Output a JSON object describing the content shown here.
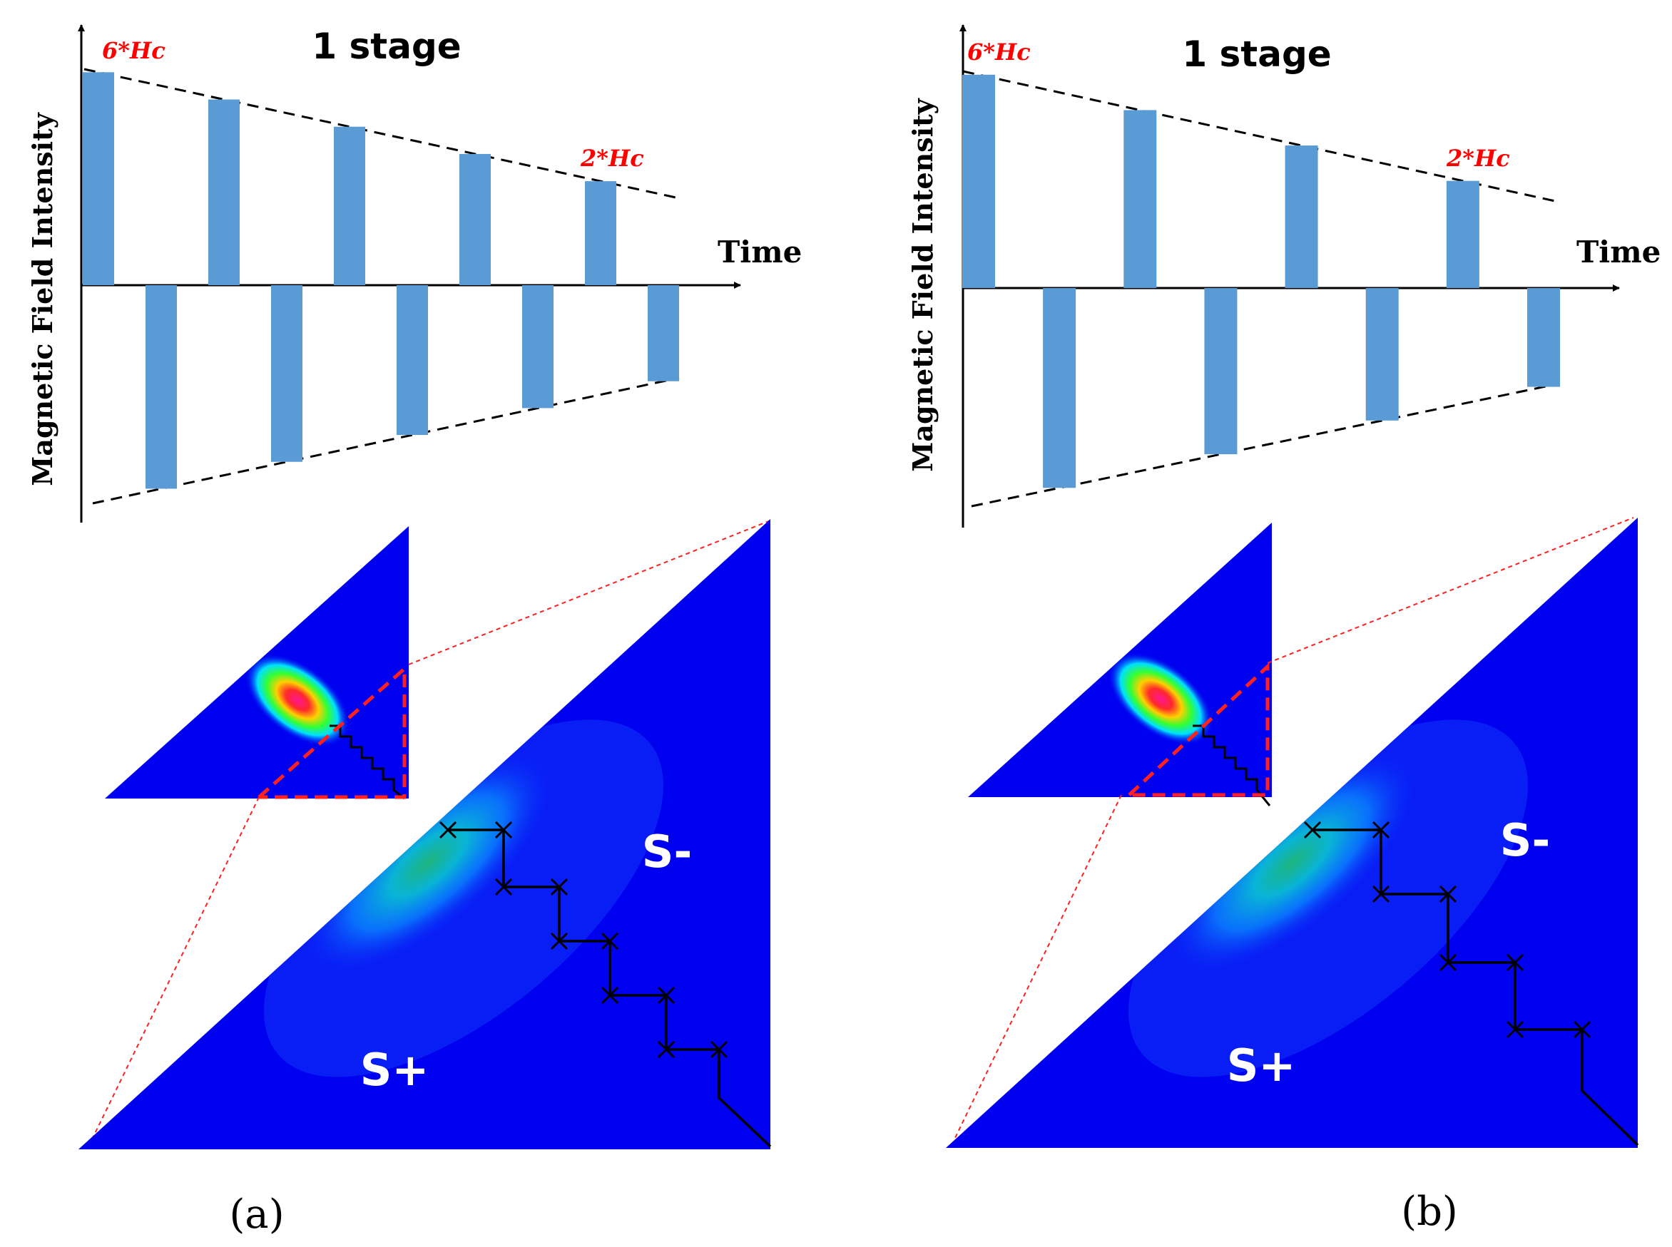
{
  "colors": {
    "bar": "#5B9BD5",
    "axis": "#000000",
    "red_label": "#FF0000",
    "red_dash": "#FF2020",
    "map_bg": "#0000F0",
    "white_text": "#FFFFFF"
  },
  "panels": [
    {
      "id": "a",
      "stage_label": "1 stage",
      "y_axis_label": "Magnetic Field Intensity",
      "x_axis_label": "Time",
      "start_field_label": "6*Hc",
      "end_field_label": "2*Hc",
      "positive_region_label": "S+",
      "negative_region_label": "S-",
      "caption": "(a)",
      "pulse_count": 10
    },
    {
      "id": "b",
      "stage_label": "1 stage",
      "y_axis_label": "Magnetic Field Intensity",
      "x_axis_label": "Time",
      "start_field_label": "6*Hc",
      "end_field_label": "2*Hc",
      "positive_region_label": "S+",
      "negative_region_label": "S-",
      "caption": "(b)",
      "pulse_count": 8
    }
  ]
}
